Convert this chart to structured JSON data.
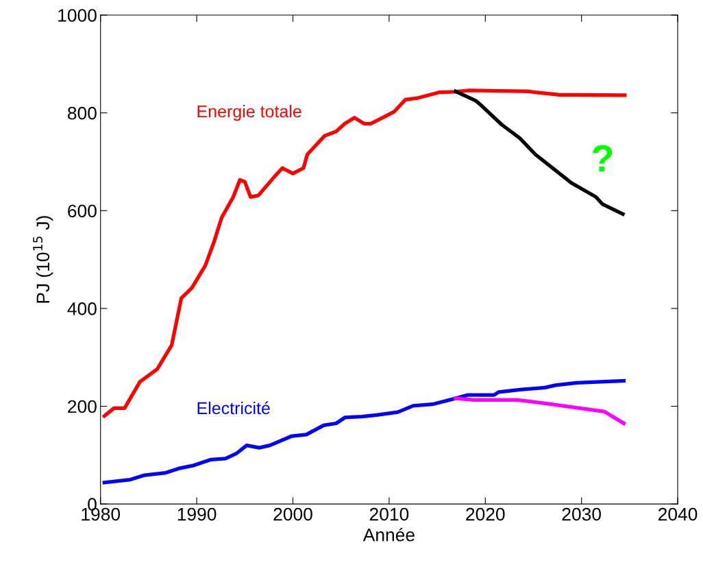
{
  "chart_data": {
    "type": "line",
    "xlabel": "Année",
    "ylabel": "PJ (10$^{15}$ J)",
    "xlim": [
      1980,
      2040
    ],
    "xticks": [
      1980,
      1990,
      2000,
      2010,
      2020,
      2030,
      2040
    ],
    "ylim": [
      0,
      1000
    ],
    "yticks": [
      0,
      200,
      400,
      600,
      800,
      1000
    ],
    "grid": false,
    "legend": false,
    "marker": "none",
    "line_style": "solid",
    "annotations": [
      "?"
    ],
    "series": [
      {
        "name": "Energie totale",
        "color": "#ff0000",
        "x": [
          1980.4,
          1981.4,
          1982.5,
          1984.1,
          1985.9,
          1987.4,
          1988.4,
          1989.5,
          1990.9,
          1991.8,
          1992.6,
          1993.8,
          1994.5,
          1995.0,
          1995.6,
          1996.4,
          1998.1,
          1998.9,
          2000.0,
          2001.1,
          2001.5,
          2003.3,
          2004.5,
          2005.4,
          2006.4,
          2007.4,
          2008.1,
          2009.5,
          2010.5,
          2011.7,
          2012.9,
          2015.2,
          2016.9,
          2018.3,
          2024.5,
          2025.2,
          2027.6,
          2034.5
        ],
        "values": [
          180,
          196,
          196,
          250,
          276,
          325,
          421,
          442,
          488,
          536,
          586,
          628,
          663,
          659,
          628,
          631,
          670,
          687,
          676,
          687,
          715,
          753,
          762,
          778,
          790,
          778,
          778,
          792,
          802,
          827,
          830,
          842,
          843,
          846,
          844,
          842,
          837,
          836
        ]
      },
      {
        "color": "#000000",
        "x": [
          2016.9,
          2019.0,
          2019.7,
          2021.7,
          2023.6,
          2025.2,
          2027.2,
          2029.0,
          2031.5,
          2032.2,
          2034.3
        ],
        "values": [
          844,
          825,
          813,
          776,
          748,
          715,
          684,
          656,
          628,
          613,
          593
        ]
      },
      {
        "name": "Electricité",
        "color": "#0000ff",
        "x": [
          1980.4,
          1983.1,
          1984.6,
          1986.8,
          1988.2,
          1989.7,
          1991.5,
          1993.0,
          1994.1,
          1995.2,
          1996.5,
          1997.6,
          1999.9,
          2001.4,
          2003.2,
          2004.5,
          2005.4,
          2007.2,
          2008.7,
          2010.9,
          2012.5,
          2014.5,
          2016.9,
          2018.2,
          2020.9,
          2021.4,
          2023.6,
          2026.2,
          2027.3,
          2029.5,
          2032.0,
          2034.4
        ],
        "values": [
          44,
          50,
          59,
          64,
          73,
          79,
          91,
          93,
          103,
          120,
          115,
          120,
          139,
          142,
          161,
          165,
          177,
          179,
          182,
          188,
          201,
          204,
          216,
          223,
          223,
          229,
          234,
          238,
          243,
          248,
          250,
          252
        ]
      },
      {
        "color": "#ff00ff",
        "x": [
          2016.9,
          2018.9,
          2023.3,
          2026.5,
          2029.8,
          2032.4,
          2034.4
        ],
        "values": [
          216,
          213,
          213,
          205,
          196,
          189,
          165
        ]
      }
    ]
  }
}
